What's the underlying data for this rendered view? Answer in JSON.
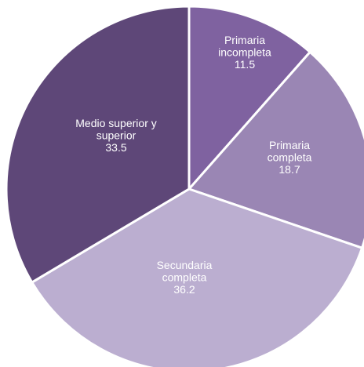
{
  "chart_data": {
    "type": "pie",
    "title": "",
    "slices": [
      {
        "label": [
          "Primaria",
          "incompleta"
        ],
        "value": 11.5,
        "value_text": "11.5",
        "color": "#7f62a0"
      },
      {
        "label": [
          "Primaria",
          "completa"
        ],
        "value": 18.7,
        "value_text": "18.7",
        "color": "#9a86b4"
      },
      {
        "label": [
          "Secundaria",
          "completa"
        ],
        "value": 36.2,
        "value_text": "36.2",
        "color": "#bbaed0"
      },
      {
        "label": [
          "Medio superior y",
          "superior"
        ],
        "value": 33.5,
        "value_text": "33.5",
        "color": "#5e4778"
      }
    ],
    "start_angle": "12 o'clock",
    "direction": "clockwise",
    "legend": "none",
    "data_labels": "inside slices"
  }
}
